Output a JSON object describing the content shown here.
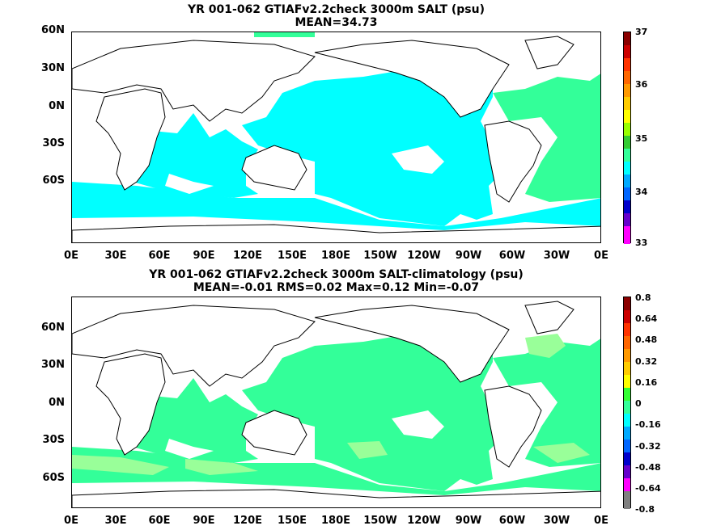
{
  "top": {
    "title": "YR 001-062 GTIAFv2.2check 3000m SALT (psu)",
    "subtitle": "MEAN=34.73",
    "colorbar": [
      "37",
      "36",
      "35",
      "34",
      "33"
    ]
  },
  "bottom": {
    "title": "YR 001-062 GTIAFv2.2check 3000m SALT-climatology (psu)",
    "subtitle": "MEAN=-0.01   RMS=0.02   Max=0.12   Min=-0.07",
    "colorbar": [
      "0.8",
      "0.64",
      "0.48",
      "0.32",
      "0.16",
      "0",
      "-0.16",
      "-0.32",
      "-0.48",
      "-0.64",
      "-0.8"
    ]
  },
  "lat_labels": [
    "60N",
    "30N",
    "0N",
    "30S",
    "60S"
  ],
  "lon_labels": [
    "0E",
    "30E",
    "60E",
    "90E",
    "120E",
    "150E",
    "180E",
    "150W",
    "120W",
    "90W",
    "60W",
    "30W",
    "0E"
  ],
  "colors": {
    "ocean_top": "#00ffff",
    "atlantic_top": "#33ff99",
    "ocean_bottom": "#33ff99",
    "anomaly_light": "#99ff99",
    "land": "#ffffff"
  }
}
